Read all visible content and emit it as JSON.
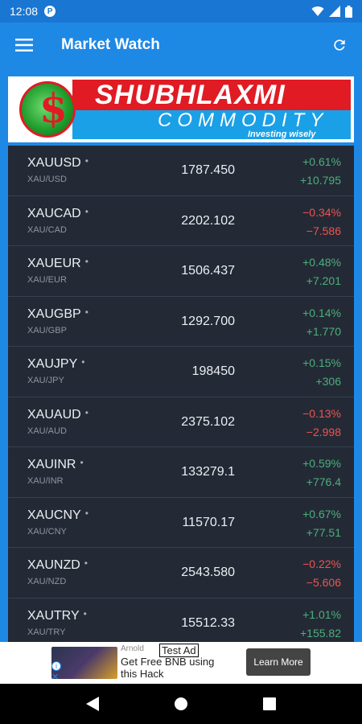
{
  "status_bar": {
    "time": "12:08",
    "notification_icon": "P"
  },
  "app_bar": {
    "title": "Market Watch",
    "menu_icon": "hamburger-icon",
    "refresh_icon": "refresh-icon"
  },
  "banner": {
    "brand_top": "SHUBHLAXMI",
    "brand_bottom": "COMMODITY",
    "tagline": "Investing wisely"
  },
  "quotes": [
    {
      "symbol": "XAUUSD",
      "pair": "XAU/USD",
      "price": "1787.450",
      "pct": "+0.61%",
      "change": "+10.795",
      "direction": "up"
    },
    {
      "symbol": "XAUCAD",
      "pair": "XAU/CAD",
      "price": "2202.102",
      "pct": "−0.34%",
      "change": "−7.586",
      "direction": "down"
    },
    {
      "symbol": "XAUEUR",
      "pair": "XAU/EUR",
      "price": "1506.437",
      "pct": "+0.48%",
      "change": "+7.201",
      "direction": "up"
    },
    {
      "symbol": "XAUGBP",
      "pair": "XAU/GBP",
      "price": "1292.700",
      "pct": "+0.14%",
      "change": "+1.770",
      "direction": "up"
    },
    {
      "symbol": "XAUJPY",
      "pair": "XAU/JPY",
      "price": "198450",
      "pct": "+0.15%",
      "change": "+306",
      "direction": "up"
    },
    {
      "symbol": "XAUAUD",
      "pair": "XAU/AUD",
      "price": "2375.102",
      "pct": "−0.13%",
      "change": "−2.998",
      "direction": "down"
    },
    {
      "symbol": "XAUINR",
      "pair": "XAU/INR",
      "price": "133279.1",
      "pct": "+0.59%",
      "change": "+776.4",
      "direction": "up"
    },
    {
      "symbol": "XAUCNY",
      "pair": "XAU/CNY",
      "price": "11570.17",
      "pct": "+0.67%",
      "change": "+77.51",
      "direction": "up"
    },
    {
      "symbol": "XAUNZD",
      "pair": "XAU/NZD",
      "price": "2543.580",
      "pct": "−0.22%",
      "change": "−5.606",
      "direction": "down"
    },
    {
      "symbol": "XAUTRY",
      "pair": "XAU/TRY",
      "price": "15512.33",
      "pct": "+1.01%",
      "change": "+155.82",
      "direction": "up"
    }
  ],
  "ad": {
    "label": "Test Ad",
    "advertiser": "Arnold",
    "headline": "Get Free BNB using this Hack",
    "cta": "Learn More"
  },
  "colors": {
    "up": "#4caf7a",
    "down": "#ef5350",
    "accent": "#1e88e5"
  }
}
